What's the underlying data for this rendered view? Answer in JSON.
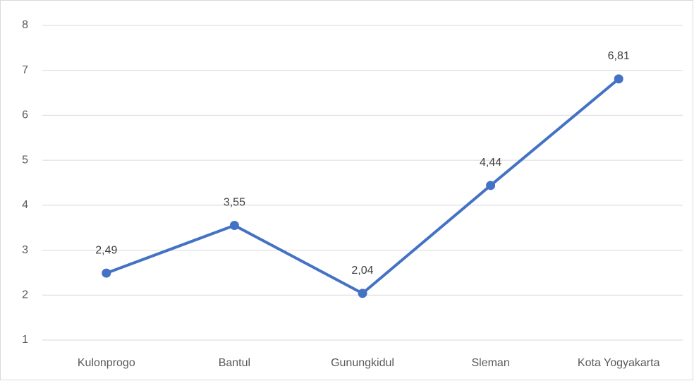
{
  "chart_data": {
    "type": "line",
    "categories": [
      "Kulonprogo",
      "Bantul",
      "Gunungkidul",
      "Sleman",
      "Kota Yogyakarta"
    ],
    "series": [
      {
        "color": "#4472c4",
        "values": [
          2.49,
          3.55,
          2.04,
          4.44,
          6.81
        ],
        "value_labels": [
          "2,49",
          "3,55",
          "2,04",
          "4,44",
          "6,81"
        ]
      }
    ],
    "ylim": [
      1,
      8
    ],
    "yticks": [
      1,
      2,
      3,
      4,
      5,
      6,
      7,
      8
    ],
    "grid": true
  }
}
